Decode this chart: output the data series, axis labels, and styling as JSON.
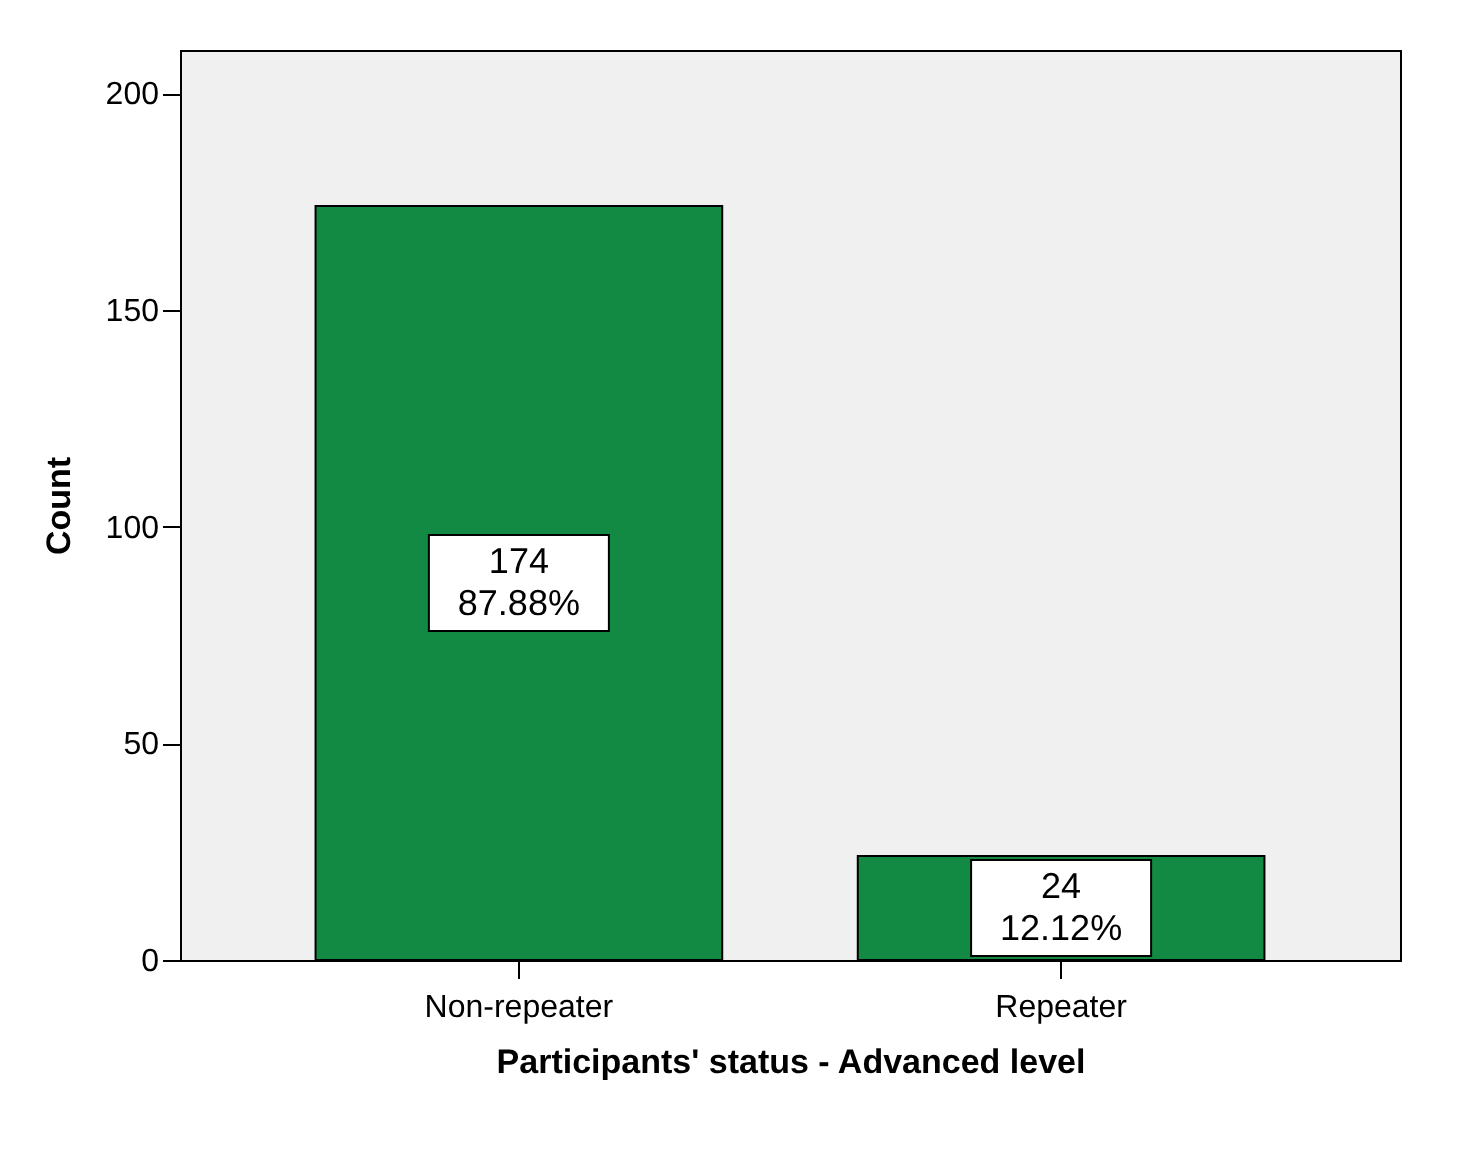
{
  "chart_data": {
    "type": "bar",
    "xlabel": "Participants' status - Advanced level",
    "ylabel": "Count",
    "categories": [
      "Non-repeater",
      "Repeater"
    ],
    "values": [
      174,
      24
    ],
    "value_labels": [
      "174\n87.88%",
      "24\n12.12%"
    ],
    "color": "#138a43",
    "ylim": [
      0,
      210
    ],
    "yticks": [
      0,
      50,
      100,
      150,
      200
    ],
    "grid": false
  }
}
